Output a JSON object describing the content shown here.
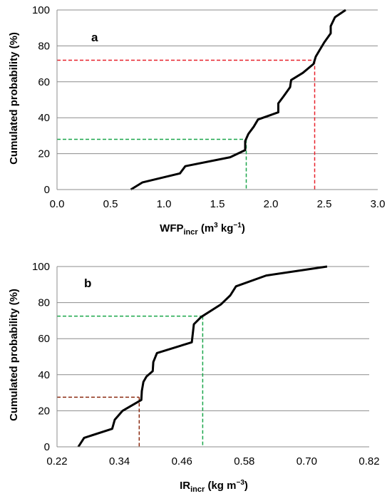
{
  "chart_data": [
    {
      "type": "line",
      "panel_label": "a",
      "xlabel_main": "WFP",
      "xlabel_sub": "incr",
      "xlabel_units_pre": " (m",
      "xlabel_units_sup1": "3",
      "xlabel_units_mid": " kg",
      "xlabel_units_sup2": "−1",
      "xlabel_units_post": ")",
      "ylabel": "Cumulated probability (%)",
      "xlim": [
        0,
        3
      ],
      "ylim": [
        0,
        100
      ],
      "xticks": [
        "0.0",
        "0.5",
        "1.0",
        "1.5",
        "2.0",
        "2.5",
        "3.0"
      ],
      "yticks": [
        "0",
        "20",
        "40",
        "60",
        "80",
        "100"
      ],
      "grid": "horizontal",
      "series": [
        {
          "color": "#000000",
          "x": [
            0.69,
            0.8,
            1.15,
            1.2,
            1.62,
            1.76,
            1.76,
            1.79,
            1.84,
            1.88,
            2.07,
            2.07,
            2.12,
            2.18,
            2.19,
            2.3,
            2.4,
            2.42,
            2.46,
            2.5,
            2.56,
            2.56,
            2.6,
            2.7
          ],
          "y": [
            0,
            4,
            9,
            13,
            18,
            22,
            27,
            31,
            35,
            39,
            43,
            48,
            52,
            57,
            61,
            65,
            70,
            74,
            78,
            82,
            87,
            91,
            96,
            100
          ]
        }
      ],
      "guides": [
        {
          "color": "#e8202a",
          "x": 2.41,
          "y": 72
        },
        {
          "color": "#1aa64a",
          "x": 1.77,
          "y": 28
        }
      ]
    },
    {
      "type": "line",
      "panel_label": "b",
      "xlabel_main": "IR",
      "xlabel_sub": "incr",
      "xlabel_units_pre": " (kg m",
      "xlabel_units_sup1": "−3",
      "xlabel_units_mid": "",
      "xlabel_units_sup2": "",
      "xlabel_units_post": ")",
      "ylabel": "Cumulated probability (%)",
      "xlim": [
        0.22,
        0.82
      ],
      "ylim": [
        0,
        100
      ],
      "xticks": [
        "0.22",
        "0.34",
        "0.46",
        "0.58",
        "0.70",
        "0.82"
      ],
      "yticks": [
        "0",
        "20",
        "40",
        "60",
        "80",
        "100"
      ],
      "grid": "horizontal",
      "series": [
        {
          "color": "#000000",
          "x": [
            0.261,
            0.272,
            0.326,
            0.331,
            0.346,
            0.382,
            0.383,
            0.386,
            0.392,
            0.404,
            0.405,
            0.412,
            0.479,
            0.483,
            0.497,
            0.535,
            0.553,
            0.564,
            0.622,
            0.739
          ],
          "y": [
            0,
            5,
            10,
            15,
            20,
            26,
            31,
            36,
            39,
            42,
            47,
            52,
            58,
            68,
            72,
            79,
            84,
            89,
            95,
            100
          ]
        }
      ],
      "guides": [
        {
          "color": "#8b2a10",
          "x": 0.378,
          "y": 27.5
        },
        {
          "color": "#1aa64a",
          "x": 0.5,
          "y": 72.5
        }
      ]
    }
  ]
}
